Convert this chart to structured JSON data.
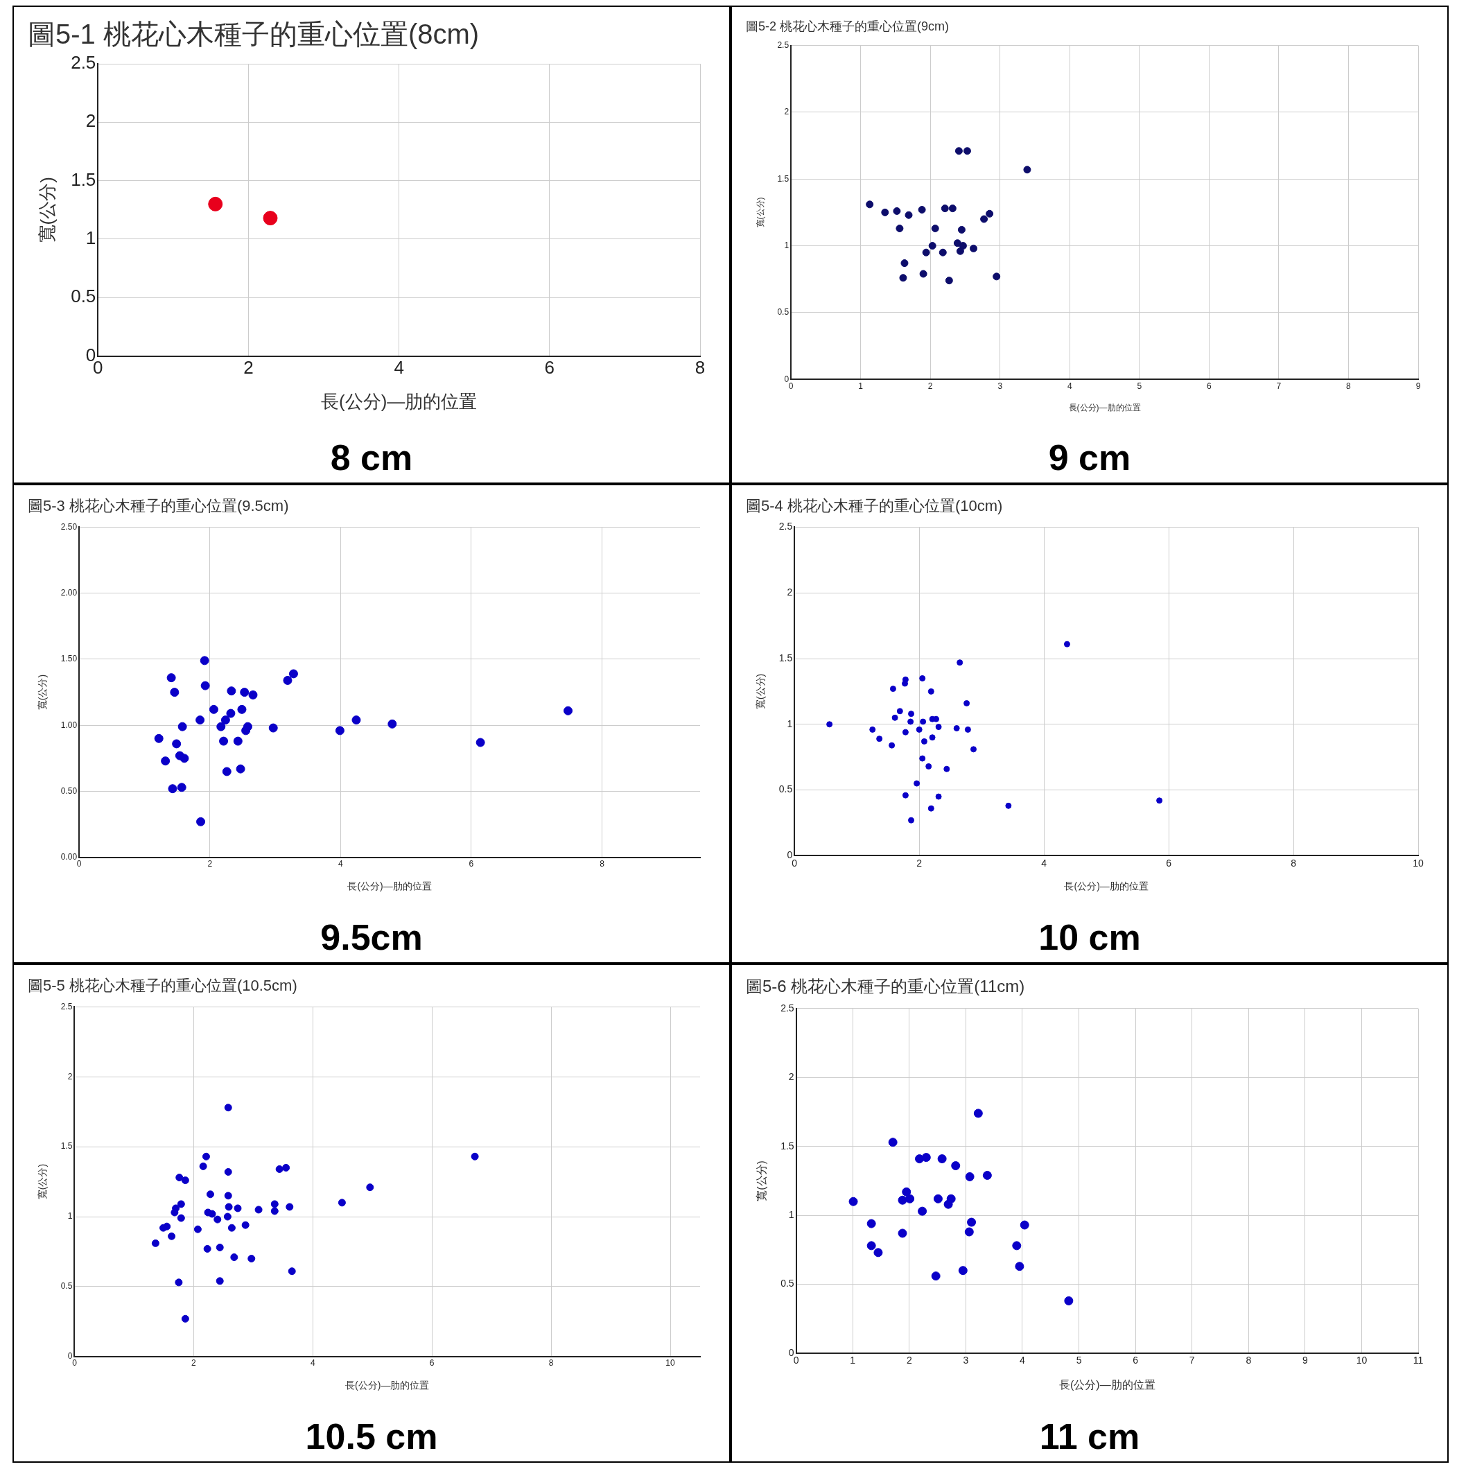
{
  "chart_data": [
    {
      "type": "scatter",
      "title": "圖5-1 桃花心木種子的重心位置(8cm)",
      "xlabel": "長(公分)—肋的位置",
      "ylabel": "寬(公分)",
      "color": "#e8001c",
      "marker": "circle",
      "grid": true,
      "x": [
        1.56,
        2.29
      ],
      "values": [
        1.3,
        1.18
      ],
      "xlim": [
        0,
        8
      ],
      "xticks": [
        0,
        2,
        4,
        6,
        8
      ],
      "ylim": [
        0,
        2.5
      ],
      "yticks": [
        0,
        0.5,
        1,
        1.5,
        2,
        2.5
      ],
      "annotations": [
        "8 cm"
      ]
    },
    {
      "type": "scatter",
      "title": "圖5-2 桃花心木種子的重心位置(9cm)",
      "xlabel": "長(公分)—肋的位置",
      "ylabel": "寬(公分)",
      "color": "#0d0d6b",
      "marker": "circle",
      "grid": true,
      "x": [
        1.13,
        1.35,
        1.52,
        1.56,
        1.69,
        1.88,
        1.63,
        1.61,
        1.9,
        1.94,
        2.03,
        2.07,
        2.21,
        2.32,
        2.18,
        2.27,
        2.41,
        2.53,
        2.39,
        2.45,
        2.43,
        2.47,
        2.62,
        2.77,
        2.85,
        2.95,
        3.39
      ],
      "values": [
        1.31,
        1.25,
        1.26,
        1.13,
        1.23,
        1.27,
        0.87,
        0.76,
        0.79,
        0.95,
        1.0,
        1.13,
        1.28,
        1.28,
        0.95,
        0.74,
        1.71,
        1.71,
        1.02,
        1.12,
        0.96,
        1.0,
        0.98,
        1.2,
        1.24,
        0.77,
        1.57
      ],
      "xlim": [
        0,
        9
      ],
      "xticks": [
        0,
        1,
        2,
        3,
        4,
        5,
        6,
        7,
        8,
        9
      ],
      "ylim": [
        0,
        2.5
      ],
      "yticks": [
        0,
        0.5,
        1,
        1.5,
        2,
        2.5
      ],
      "annotations": [
        "9 cm"
      ]
    },
    {
      "type": "scatter",
      "title": "圖5-3 桃花心木種子的重心位置(9.5cm)",
      "xlabel": "長(公分)—肋的位置",
      "ylabel": "寬(公分)",
      "color": "#0a00c8",
      "marker": "circle",
      "grid": true,
      "x": [
        1.92,
        1.41,
        1.46,
        1.93,
        1.22,
        1.32,
        1.49,
        1.58,
        1.54,
        1.61,
        1.43,
        1.57,
        1.86,
        1.85,
        2.06,
        2.17,
        2.24,
        2.32,
        2.21,
        2.33,
        2.26,
        2.49,
        2.43,
        2.47,
        2.53,
        2.66,
        2.58,
        2.55,
        2.97,
        3.19,
        3.28,
        3.99,
        4.24,
        4.79,
        6.14,
        7.48
      ],
      "values": [
        1.49,
        1.36,
        1.25,
        1.3,
        0.9,
        0.73,
        0.86,
        0.99,
        0.77,
        0.75,
        0.52,
        0.53,
        0.27,
        1.04,
        1.12,
        0.99,
        1.04,
        1.09,
        0.88,
        1.26,
        0.65,
        1.12,
        0.88,
        0.67,
        1.25,
        1.23,
        0.99,
        0.96,
        0.98,
        1.34,
        1.39,
        0.96,
        1.04,
        1.01,
        0.87,
        1.11
      ],
      "xlim": [
        0,
        9.5
      ],
      "xticks": [
        0,
        2,
        4,
        6,
        8
      ],
      "ylim": [
        0,
        2.5
      ],
      "yticks": [
        {
          "value": 0,
          "label": "0.00"
        },
        {
          "value": 0.5,
          "label": "0.50"
        },
        {
          "value": 1,
          "label": "1.00"
        },
        {
          "value": 1.5,
          "label": "1.50"
        },
        {
          "value": 2,
          "label": "2.00"
        },
        {
          "value": 2.5,
          "label": "2.50"
        }
      ],
      "annotations": [
        "9.5cm"
      ]
    },
    {
      "type": "scatter",
      "title": "圖5-4 桃花心木種子的重心位置(10cm)",
      "xlabel": "長(公分)—肋的位置",
      "ylabel": "寬(公分)",
      "color": "#0a00c8",
      "marker": "circle",
      "grid": true,
      "x": [
        0.56,
        1.25,
        1.36,
        1.56,
        1.58,
        1.61,
        1.69,
        1.77,
        1.78,
        1.78,
        1.87,
        1.86,
        2.0,
        2.05,
        2.06,
        2.08,
        2.05,
        2.15,
        1.96,
        1.78,
        1.87,
        2.19,
        2.21,
        2.27,
        2.21,
        2.31,
        2.31,
        2.19,
        2.44,
        2.6,
        2.65,
        2.76,
        2.78,
        2.87,
        3.43,
        4.37,
        5.85
      ],
      "values": [
        1.0,
        0.96,
        0.89,
        0.84,
        1.27,
        1.05,
        1.1,
        1.31,
        1.34,
        0.94,
        1.08,
        1.02,
        0.96,
        1.35,
        1.02,
        0.87,
        0.74,
        0.68,
        0.55,
        0.46,
        0.27,
        1.25,
        1.04,
        1.04,
        0.9,
        0.98,
        0.45,
        0.36,
        0.66,
        0.97,
        1.47,
        1.16,
        0.96,
        0.81,
        0.38,
        1.61,
        0.42
      ],
      "xlim": [
        0,
        10
      ],
      "xticks": [
        0,
        2,
        4,
        6,
        8,
        10
      ],
      "ylim": [
        0,
        2.5
      ],
      "yticks": [
        0,
        0.5,
        1,
        1.5,
        2,
        2.5
      ],
      "annotations": [
        "10 cm"
      ]
    },
    {
      "type": "scatter",
      "title": "圖5-5 桃花心木種子的重心位置(10.5cm)",
      "xlabel": "長(公分)—肋的位置",
      "ylabel": "寬(公分)",
      "color": "#0a00c8",
      "marker": "circle",
      "grid": true,
      "x": [
        2.58,
        2.21,
        2.16,
        1.76,
        1.86,
        2.58,
        2.28,
        2.58,
        1.79,
        1.7,
        1.68,
        1.79,
        1.55,
        1.49,
        1.63,
        1.36,
        2.07,
        2.24,
        2.31,
        2.4,
        2.59,
        2.57,
        2.64,
        2.74,
        2.87,
        3.09,
        3.36,
        3.36,
        3.44,
        3.55,
        3.61,
        2.23,
        2.44,
        2.68,
        2.97,
        3.65,
        1.75,
        2.44,
        1.86,
        4.49,
        4.96,
        6.72
      ],
      "values": [
        1.78,
        1.43,
        1.36,
        1.28,
        1.26,
        1.32,
        1.16,
        1.15,
        1.09,
        1.06,
        1.03,
        0.99,
        0.93,
        0.92,
        0.86,
        0.81,
        0.91,
        1.03,
        1.02,
        0.98,
        1.07,
        1.0,
        0.92,
        1.06,
        0.94,
        1.05,
        1.09,
        1.04,
        1.34,
        1.35,
        1.07,
        0.77,
        0.78,
        0.71,
        0.7,
        0.61,
        0.53,
        0.54,
        0.27,
        1.1,
        1.21,
        1.43
      ],
      "xlim": [
        0,
        10.5
      ],
      "xticks": [
        0,
        2,
        4,
        6,
        8,
        10
      ],
      "ylim": [
        0,
        2.5
      ],
      "yticks": [
        0,
        0.5,
        1,
        1.5,
        2,
        2.5
      ],
      "annotations": [
        "10.5 cm"
      ]
    },
    {
      "type": "scatter",
      "title": "圖5-6 桃花心木種子的重心位置(11cm)",
      "xlabel": "長(公分)—肋的位置",
      "ylabel": "寬(公分)",
      "color": "#0a00c8",
      "marker": "circle",
      "grid": true,
      "x": [
        1.01,
        1.33,
        1.33,
        1.45,
        1.71,
        1.88,
        1.95,
        2.01,
        1.88,
        2.18,
        2.3,
        2.23,
        2.47,
        2.51,
        2.58,
        2.69,
        2.74,
        2.82,
        2.95,
        3.07,
        3.06,
        3.1,
        3.22,
        3.38,
        3.9,
        3.95,
        4.04,
        4.82
      ],
      "values": [
        1.1,
        0.94,
        0.78,
        0.73,
        1.53,
        1.11,
        1.17,
        1.12,
        0.87,
        1.41,
        1.42,
        1.03,
        0.56,
        1.12,
        1.41,
        1.08,
        1.12,
        1.36,
        0.6,
        1.28,
        0.88,
        0.95,
        1.74,
        1.29,
        0.78,
        0.63,
        0.93,
        0.38
      ],
      "xlim": [
        0,
        11
      ],
      "xticks": [
        0,
        1,
        2,
        3,
        4,
        5,
        6,
        7,
        8,
        9,
        10,
        11
      ],
      "ylim": [
        0,
        2.5
      ],
      "yticks": [
        0,
        0.5,
        1,
        1.5,
        2,
        2.5
      ],
      "annotations": [
        "11 cm"
      ]
    }
  ]
}
